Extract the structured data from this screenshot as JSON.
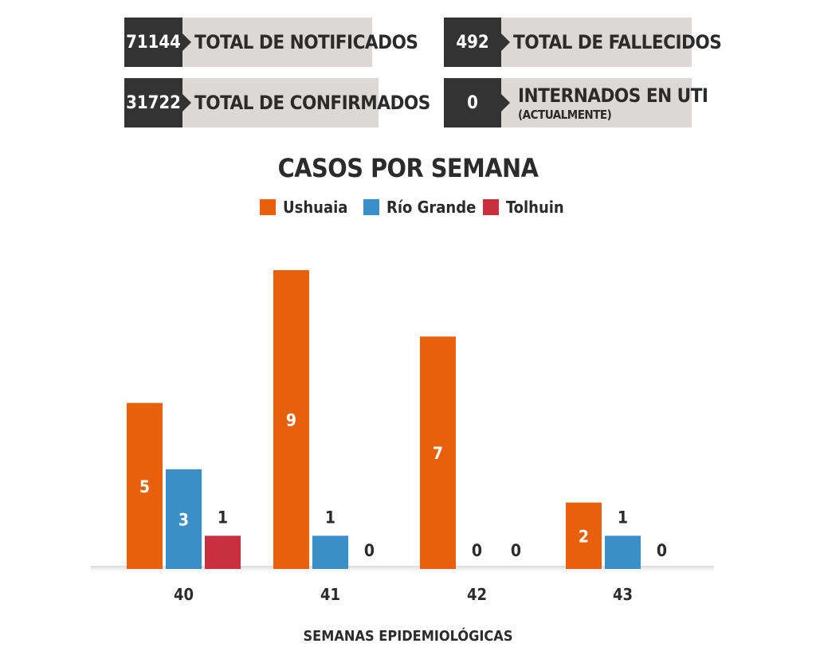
{
  "stats": [
    {
      "value": "71144",
      "label": "TOTAL DE NOTIFICADOS",
      "sub": ""
    },
    {
      "value": "31722",
      "label": "TOTAL DE CONFIRMADOS",
      "sub": ""
    },
    {
      "value": "492",
      "label": "TOTAL DE FALLECIDOS",
      "sub": ""
    },
    {
      "value": "0",
      "label": "INTERNADOS EN UTI",
      "sub": "(ACTUALMENTE)"
    }
  ],
  "colors": {
    "ushuaia": "#e8600c",
    "rio_grande": "#3b8fc8",
    "tolhuin": "#c8303f",
    "card_bg": "#dbd8d6",
    "card_num": "#333333"
  },
  "chart_data": {
    "type": "bar",
    "title": "CASOS POR SEMANA",
    "xlabel": "SEMANAS EPIDEMIOLÓGICAS",
    "ylabel": "",
    "categories": [
      "40",
      "41",
      "42",
      "43"
    ],
    "series": [
      {
        "name": "Ushuaia",
        "values": [
          5,
          9,
          7,
          2
        ],
        "color": "#e8600c"
      },
      {
        "name": "Río Grande",
        "values": [
          3,
          1,
          0,
          1
        ],
        "color": "#3b8fc8"
      },
      {
        "name": "Tolhuin",
        "values": [
          1,
          0,
          0,
          0
        ],
        "color": "#c8303f"
      }
    ],
    "ylim": [
      0,
      9
    ],
    "grid": false,
    "legend": "top-center"
  }
}
